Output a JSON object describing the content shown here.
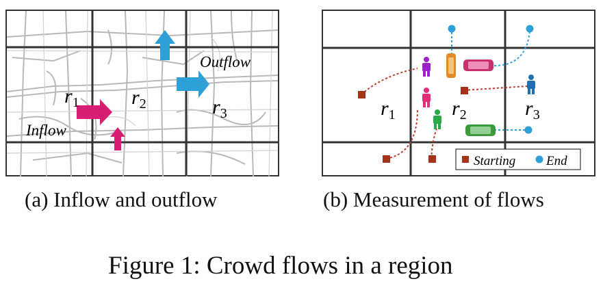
{
  "panel_a": {
    "region_1": "r",
    "region_1_sub": "1",
    "region_2": "r",
    "region_2_sub": "2",
    "region_3": "r",
    "region_3_sub": "3",
    "inflow_label": "Inflow",
    "outflow_label": "Outflow",
    "caption": "(a)  Inflow and outflow",
    "colors": {
      "inflow": "#d61f73",
      "outflow": "#2ea0d8",
      "grid": "#333333",
      "road": "#b5b5b5"
    }
  },
  "panel_b": {
    "region_1": "r",
    "region_1_sub": "1",
    "region_2": "r",
    "region_2_sub": "2",
    "region_3": "r",
    "region_3_sub": "3",
    "legend_start": "Starting",
    "legend_end": "End",
    "caption": "(b)  Measurement of flows",
    "colors": {
      "start": "#a3341a",
      "end": "#2ea0d8",
      "trail_red": "#c0392b",
      "trail_blue": "#2ea0d8",
      "person_purple": "#a020c8",
      "person_pink": "#e0307a",
      "person_green": "#2aa84a",
      "person_blue": "#1f6fb5",
      "car_orange": "#e08a2a",
      "car_pink": "#c8306e",
      "car_green": "#3c9a3c"
    }
  },
  "figure_caption": "Figure 1: Crowd flows in a region"
}
